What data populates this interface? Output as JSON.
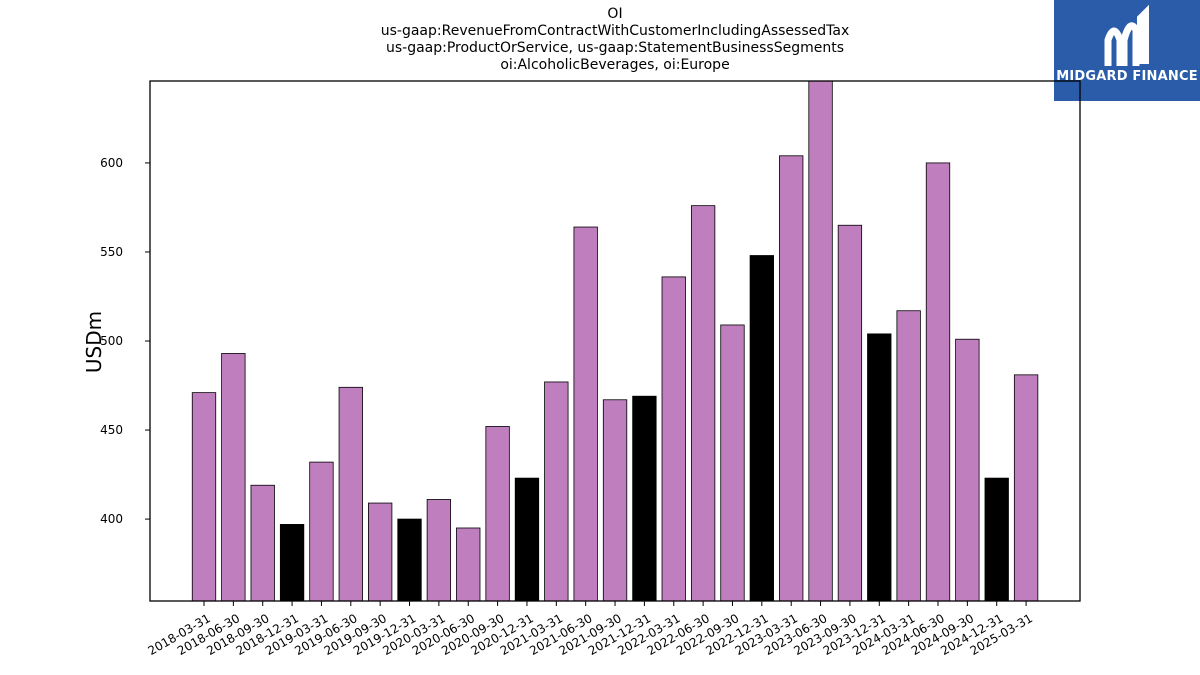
{
  "chart_data": {
    "type": "bar",
    "title": "OI",
    "subtitle_lines": [
      "us-gaap:RevenueFromContractWithCustomerIncludingAssessedTax",
      "us-gaap:ProductOrService, us-gaap:StatementBusinessSegments",
      "oi:AlcoholicBeverages, oi:Europe"
    ],
    "xlabel": "",
    "ylabel": "USDm",
    "ylim": [
      354,
      646
    ],
    "yticks": [
      400,
      450,
      500,
      550,
      600
    ],
    "categories": [
      "2018-03-31",
      "2018-06-30",
      "2018-09-30",
      "2018-12-31",
      "2019-03-31",
      "2019-06-30",
      "2019-09-30",
      "2019-12-31",
      "2020-03-31",
      "2020-06-30",
      "2020-09-30",
      "2020-12-31",
      "2021-03-31",
      "2021-06-30",
      "2021-09-30",
      "2021-12-31",
      "2022-03-31",
      "2022-06-30",
      "2022-09-30",
      "2022-12-31",
      "2023-03-31",
      "2023-06-30",
      "2023-09-30",
      "2023-12-31",
      "2024-03-31",
      "2024-06-30",
      "2024-09-30",
      "2024-12-31",
      "2025-03-31"
    ],
    "values": [
      471,
      493,
      419,
      397,
      432,
      474,
      409,
      400,
      411,
      395,
      452,
      423,
      477,
      564,
      467,
      469,
      536,
      576,
      509,
      548,
      604,
      646,
      565,
      504,
      517,
      600,
      501,
      423,
      481
    ],
    "colors": {
      "quarter": "#bf7fbf",
      "year_end": "#000000",
      "edge": "#000000"
    },
    "grid": false,
    "legend": "none"
  },
  "logo": {
    "text": "MIDGARD FINANCE",
    "background": "#2a5caa"
  }
}
